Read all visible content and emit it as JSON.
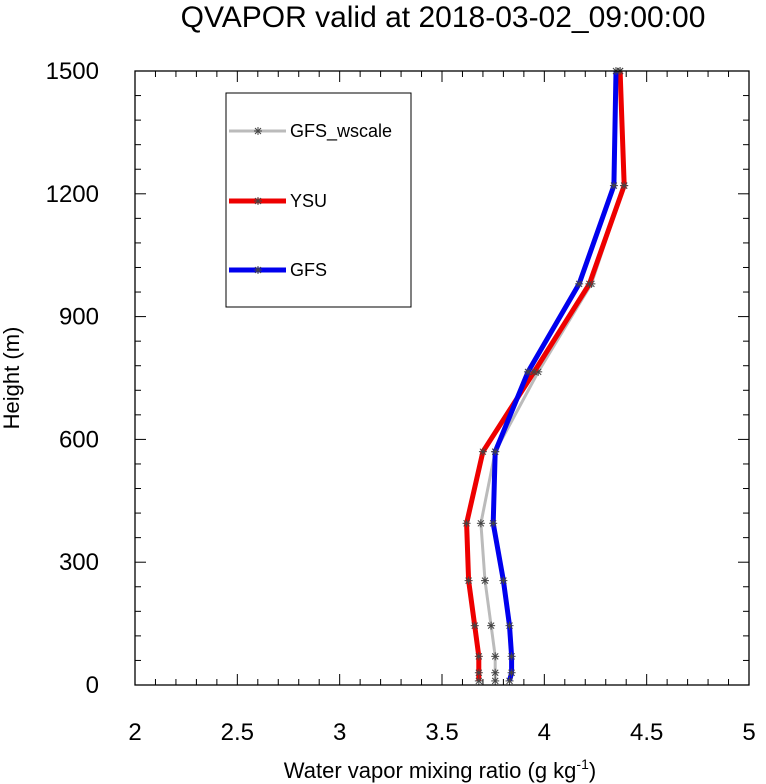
{
  "chart_data": {
    "type": "line",
    "title": "QVAPOR valid at 2018-03-02_09:00:00",
    "xlabel": "Water vapor mixing ratio (g kg",
    "xlabel_sup": "-1",
    "xlabel_end": ")",
    "ylabel": "Height (m)",
    "xlim": [
      2,
      5
    ],
    "ylim": [
      0,
      1500
    ],
    "xticks": [
      2,
      2.5,
      3,
      3.5,
      4,
      4.5,
      5
    ],
    "xtick_labels": [
      "2",
      "2.5",
      "3",
      "3.5",
      "4",
      "4.5",
      "5"
    ],
    "yticks": [
      0,
      300,
      600,
      900,
      1200,
      1500
    ],
    "ytick_labels": [
      "0",
      "300",
      "600",
      "900",
      "1200",
      "1500"
    ],
    "heights": [
      10,
      30,
      70,
      145,
      255,
      395,
      570,
      765,
      980,
      1220,
      1500
    ],
    "legend_position": "top-left",
    "grid": false,
    "series": [
      {
        "name": "GFS_wscale",
        "color": "#bbbbbb",
        "values": [
          3.76,
          3.76,
          3.76,
          3.74,
          3.71,
          3.69,
          3.76,
          3.97,
          4.23,
          4.39,
          4.37
        ]
      },
      {
        "name": "YSU",
        "color": "#ee0000",
        "values": [
          3.68,
          3.68,
          3.68,
          3.66,
          3.63,
          3.62,
          3.7,
          3.95,
          4.22,
          4.39,
          4.37
        ]
      },
      {
        "name": "GFS",
        "color": "#0000ee",
        "values": [
          3.83,
          3.84,
          3.84,
          3.83,
          3.8,
          3.75,
          3.76,
          3.92,
          4.17,
          4.34,
          4.35
        ]
      }
    ]
  }
}
